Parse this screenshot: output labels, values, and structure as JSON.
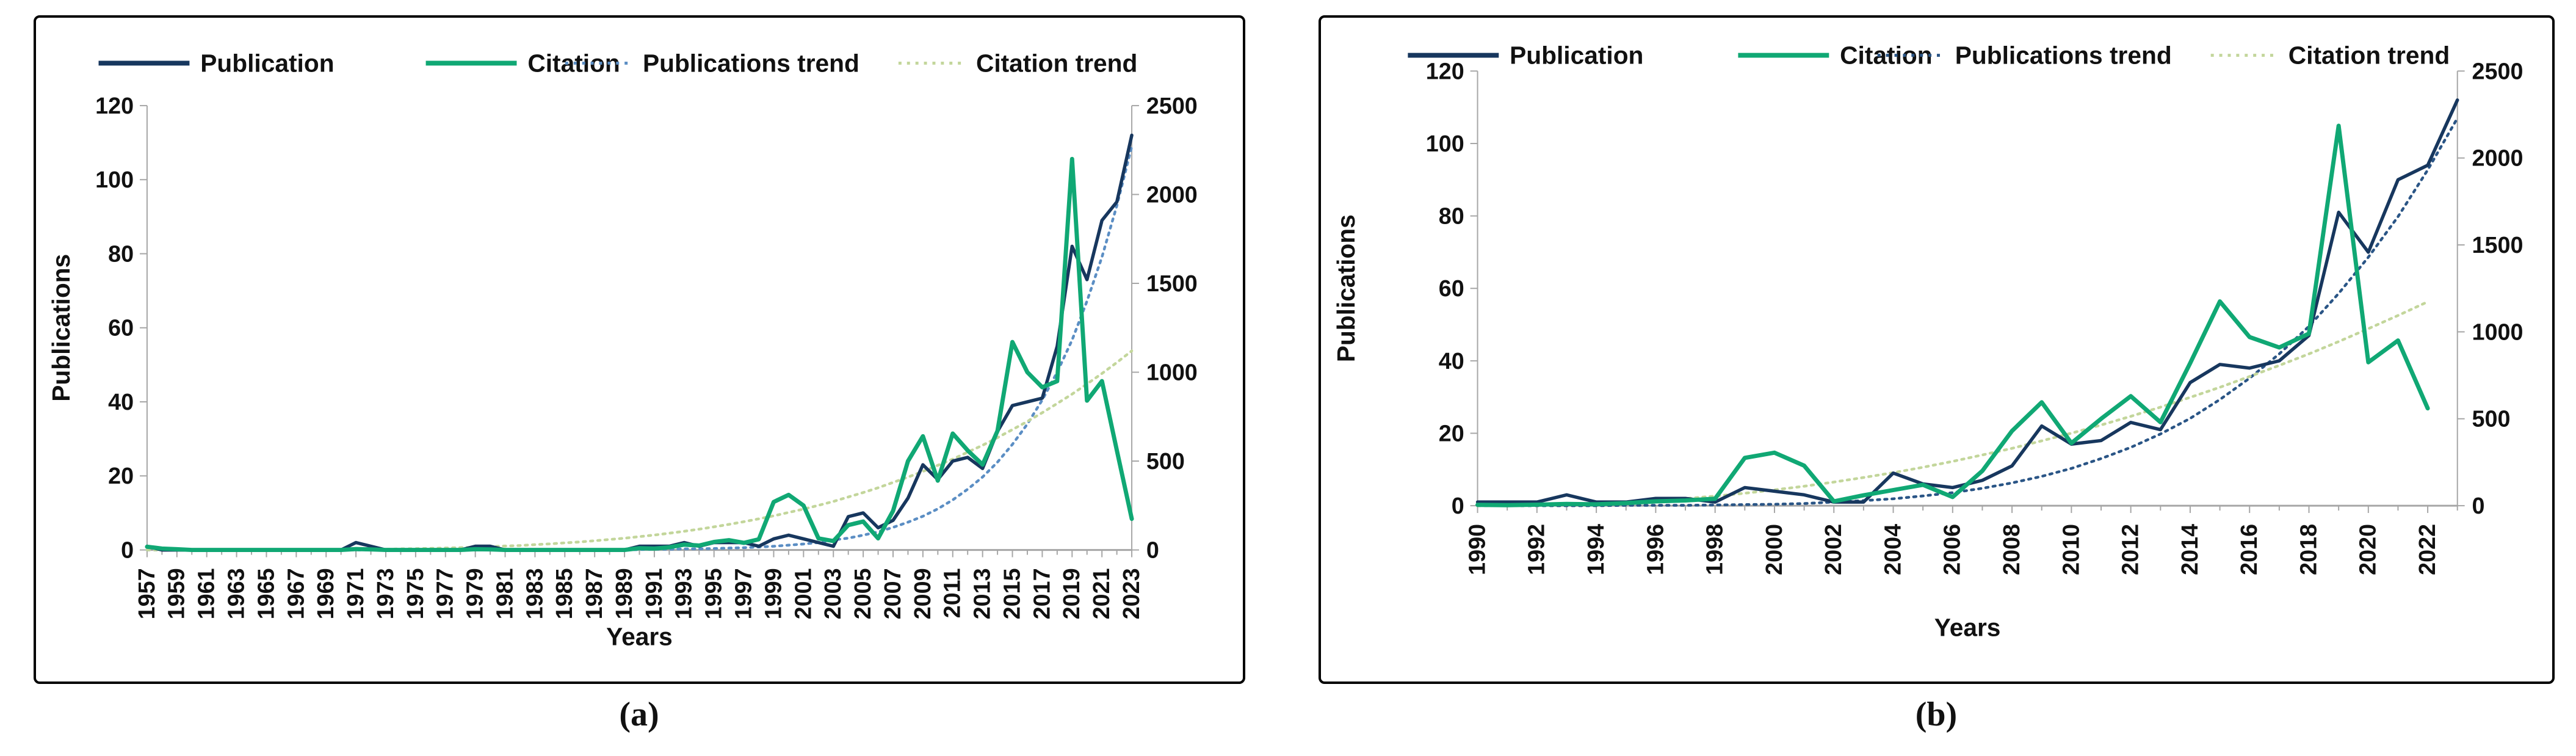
{
  "figure": {
    "background": "#ffffff",
    "border_color": "#000000",
    "axis_color": "#a6a6a6",
    "text_color": "#111111"
  },
  "chart_data": [
    {
      "id": "a",
      "type": "line",
      "caption": "(a)",
      "xlabel": "Years",
      "legend_position": "top",
      "grid": false,
      "axes": {
        "left": {
          "title": "Publications",
          "min": 0,
          "max": 120,
          "step": 20
        },
        "right": {
          "title": "",
          "min": 0,
          "max": 2500,
          "step": 500
        }
      },
      "x_tick_label_every": 2,
      "years": [
        1957,
        1958,
        1959,
        1960,
        1961,
        1962,
        1963,
        1964,
        1965,
        1966,
        1967,
        1968,
        1969,
        1970,
        1971,
        1972,
        1973,
        1974,
        1975,
        1976,
        1977,
        1978,
        1979,
        1980,
        1981,
        1982,
        1983,
        1984,
        1985,
        1986,
        1987,
        1988,
        1989,
        1990,
        1991,
        1992,
        1993,
        1994,
        1995,
        1996,
        1997,
        1998,
        1999,
        2000,
        2001,
        2002,
        2003,
        2004,
        2005,
        2006,
        2007,
        2008,
        2009,
        2010,
        2011,
        2012,
        2013,
        2014,
        2015,
        2016,
        2017,
        2018,
        2019,
        2020,
        2021,
        2022,
        2023
      ],
      "series": [
        {
          "name": "Publication",
          "axis": "left",
          "color": "#17375e",
          "style": "solid",
          "width": 5.5,
          "values": [
            1,
            0,
            0,
            0,
            0,
            0,
            0,
            0,
            0,
            0,
            0,
            0,
            0,
            0,
            2,
            1,
            0,
            0,
            0,
            0,
            0,
            0,
            1,
            1,
            0,
            0,
            0,
            0,
            0,
            0,
            0,
            0,
            0,
            1,
            1,
            1,
            2,
            1,
            2,
            2,
            2,
            1,
            3,
            4,
            3,
            2,
            1,
            9,
            10,
            6,
            8,
            14,
            23,
            19,
            24,
            25,
            22,
            32,
            39,
            40,
            41,
            55,
            82,
            73,
            89,
            94,
            112
          ]
        },
        {
          "name": "Citation",
          "axis": "right",
          "color": "#10a874",
          "style": "solid",
          "width": 7,
          "values": [
            18,
            8,
            4,
            0,
            0,
            0,
            0,
            0,
            0,
            0,
            0,
            0,
            0,
            0,
            5,
            3,
            0,
            0,
            0,
            0,
            0,
            0,
            4,
            3,
            0,
            0,
            0,
            0,
            0,
            0,
            0,
            0,
            0,
            10,
            8,
            15,
            30,
            25,
            45,
            55,
            40,
            60,
            270,
            310,
            250,
            65,
            50,
            140,
            160,
            65,
            220,
            500,
            640,
            390,
            655,
            560,
            480,
            670,
            1170,
            1000,
            915,
            950,
            2200,
            840,
            950,
            560,
            175
          ]
        },
        {
          "name": "Publications trend",
          "axis": "left",
          "color": "#5b8ec4",
          "style": "dotted",
          "width": 4.5,
          "values": [
            0,
            0,
            0,
            0,
            0,
            0,
            0,
            0,
            0,
            0,
            0,
            0,
            0,
            0,
            0,
            0,
            0,
            0,
            0,
            0,
            0,
            0,
            0,
            0,
            0,
            0,
            0,
            0,
            0,
            0,
            0,
            0,
            0,
            0.1,
            0.2,
            0.2,
            0.3,
            0.3,
            0.4,
            0.5,
            0.6,
            0.8,
            1,
            1.3,
            1.6,
            2,
            2.7,
            3.2,
            4,
            4.9,
            6.1,
            7.5,
            9.1,
            11.1,
            13.5,
            16.4,
            19.7,
            23.7,
            28.5,
            34,
            40.5,
            48,
            56.7,
            67.2,
            79.1,
            93,
            109
          ]
        },
        {
          "name": "Citation trend",
          "axis": "right",
          "color": "#c3d69b",
          "style": "dotted",
          "width": 4.5,
          "values": [
            0,
            0,
            0,
            0,
            0,
            0,
            0,
            0,
            0,
            0,
            1,
            1,
            2,
            2,
            3,
            3,
            4,
            6,
            7,
            9,
            11,
            13,
            15,
            18,
            22,
            25,
            30,
            34,
            40,
            45,
            52,
            59,
            66,
            75,
            84,
            94,
            105,
            117,
            130,
            144,
            159,
            175,
            192,
            211,
            230,
            251,
            273,
            298,
            323,
            350,
            380,
            410,
            442,
            476,
            511,
            550,
            589,
            632,
            677,
            723,
            772,
            824,
            877,
            934,
            993,
            1055,
            1120
          ]
        }
      ]
    },
    {
      "id": "b",
      "type": "line",
      "caption": "(b)",
      "xlabel": "Years",
      "legend_position": "top",
      "grid": false,
      "axes": {
        "left": {
          "title": "Publications",
          "min": 0,
          "max": 120,
          "step": 20
        },
        "right": {
          "title": "",
          "min": 0,
          "max": 2500,
          "step": 500
        }
      },
      "x_tick_label_every": 2,
      "years": [
        1990,
        1991,
        1992,
        1993,
        1994,
        1995,
        1996,
        1997,
        1998,
        1999,
        2000,
        2001,
        2002,
        2003,
        2004,
        2005,
        2006,
        2007,
        2008,
        2009,
        2010,
        2011,
        2012,
        2013,
        2014,
        2015,
        2016,
        2017,
        2018,
        2019,
        2020,
        2021,
        2022,
        2023
      ],
      "series": [
        {
          "name": "Publication",
          "axis": "left",
          "color": "#17375e",
          "style": "solid",
          "width": 5.5,
          "values": [
            1,
            1,
            1,
            3,
            1,
            1,
            2,
            2,
            1,
            5,
            4,
            3,
            1,
            1,
            9,
            6,
            5,
            7,
            11,
            22,
            17,
            18,
            23,
            21,
            34,
            39,
            38,
            40,
            47,
            81,
            70,
            90,
            94,
            112
          ]
        },
        {
          "name": "Citation",
          "axis": "right",
          "color": "#10a874",
          "style": "solid",
          "width": 7,
          "values": [
            5,
            3,
            6,
            10,
            8,
            15,
            25,
            30,
            40,
            275,
            305,
            230,
            25,
            60,
            90,
            120,
            50,
            200,
            430,
            595,
            360,
            500,
            630,
            480,
            820,
            1175,
            970,
            910,
            990,
            2185,
            825,
            950,
            560,
            null
          ]
        },
        {
          "name": "Publications trend",
          "axis": "left",
          "color": "#2a5586",
          "style": "dotted",
          "width": 4.5,
          "values": [
            0,
            0,
            0,
            0,
            0,
            0.1,
            0.1,
            0.1,
            0.2,
            0.3,
            0.4,
            0.6,
            1,
            1.4,
            1.9,
            2.7,
            3.6,
            4.8,
            6.3,
            8.1,
            10.3,
            13,
            16.1,
            19.8,
            24.1,
            29.3,
            35.2,
            41.9,
            49.5,
            58.6,
            68.6,
            79.8,
            92.7,
            107
          ]
        },
        {
          "name": "Citation trend",
          "axis": "right",
          "color": "#c3d69b",
          "style": "dotted",
          "width": 4.5,
          "values": [
            0,
            1,
            3,
            6,
            12,
            20,
            30,
            41,
            55,
            72,
            91,
            112,
            136,
            162,
            190,
            221,
            255,
            292,
            330,
            373,
            417,
            464,
            514,
            567,
            623,
            681,
            743,
            807,
            873,
            944,
            1018,
            1094,
            1173,
            null
          ]
        }
      ]
    }
  ]
}
